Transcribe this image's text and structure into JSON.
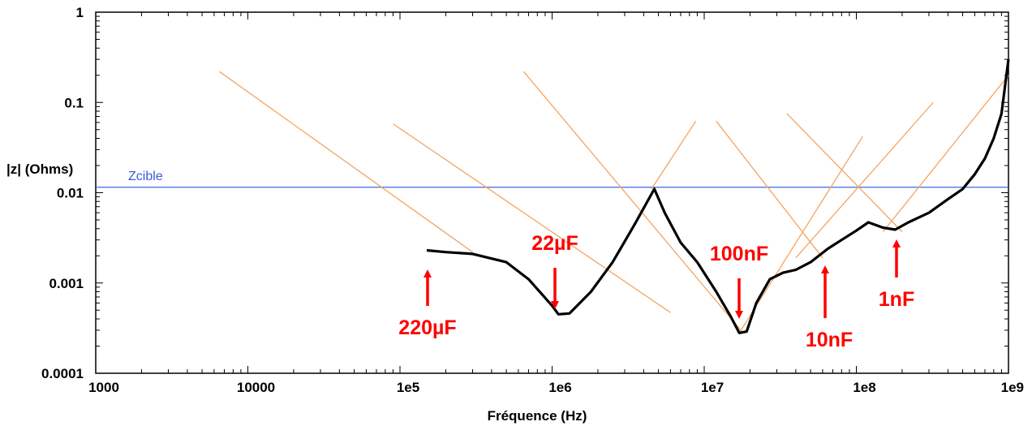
{
  "chart_data": {
    "type": "line",
    "title": "",
    "xlabel": "Fréquence (Hz)",
    "ylabel": "|z| (Ohms)",
    "xscale": "log",
    "yscale": "log",
    "xlim": [
      1000,
      1000000000
    ],
    "ylim": [
      0.0001,
      1
    ],
    "x_ticks": [
      1000,
      10000,
      100000,
      1000000,
      10000000,
      100000000,
      1000000000
    ],
    "x_tick_labels": [
      "1000",
      "10000",
      "1e5",
      "1e6",
      "1e7",
      "1e8",
      "1e9"
    ],
    "y_ticks": [
      1,
      0.1,
      0.01,
      0.001,
      0.0001
    ],
    "y_tick_labels": [
      "1",
      "0.1",
      "0.01",
      "0.001",
      "0.0001"
    ],
    "grid": false,
    "colors": {
      "total": "#000000",
      "capacitor": "#f4a460",
      "target": "#4169e1",
      "annotation": "#ff0000"
    },
    "target_line": {
      "label": "Zcible",
      "value": 0.0115
    },
    "series": [
      {
        "x": [
          150000,
          200000,
          300000,
          500000,
          700000,
          1000000,
          1100000,
          1300000,
          1800000,
          2500000,
          3500000,
          4700000,
          5500000,
          7000000,
          9000000,
          12000000,
          15000000,
          17000000,
          19000000,
          22000000,
          27000000,
          33000000,
          40000000,
          50000000,
          65000000,
          80000000,
          100000000,
          120000000,
          150000000,
          180000000,
          220000000,
          300000000,
          400000000,
          500000000,
          600000000,
          700000000,
          800000000,
          900000000,
          1000000000
        ],
        "y": [
          0.0023,
          0.0022,
          0.0021,
          0.0017,
          0.0011,
          0.00056,
          0.00045,
          0.00046,
          0.0008,
          0.0017,
          0.0045,
          0.011,
          0.006,
          0.0028,
          0.0017,
          0.0008,
          0.00042,
          0.00028,
          0.00029,
          0.0006,
          0.0011,
          0.0013,
          0.0014,
          0.0017,
          0.0024,
          0.003,
          0.0038,
          0.0047,
          0.0041,
          0.0039,
          0.0047,
          0.006,
          0.0085,
          0.011,
          0.016,
          0.024,
          0.04,
          0.075,
          0.3
        ]
      },
      {
        "x": [
          6500,
          300000
        ],
        "y": [
          0.22,
          0.0022
        ]
      },
      {
        "x": [
          90000,
          6000000
        ],
        "y": [
          0.058,
          0.00047
        ]
      },
      {
        "x": [
          4500000,
          8800000
        ],
        "y": [
          0.011,
          0.062
        ]
      },
      {
        "x": [
          650000,
          18000000
        ],
        "y": [
          0.22,
          0.00028
        ]
      },
      {
        "x": [
          17000000,
          110000000
        ],
        "y": [
          0.00028,
          0.042
        ]
      },
      {
        "x": [
          12000000,
          60000000
        ],
        "y": [
          0.062,
          0.0019
        ]
      },
      {
        "x": [
          40000000,
          320000000
        ],
        "y": [
          0.0019,
          0.1
        ]
      },
      {
        "x": [
          35000000,
          200000000
        ],
        "y": [
          0.075,
          0.0037
        ]
      },
      {
        "x": [
          150000000,
          1000000000
        ],
        "y": [
          0.0037,
          0.2
        ]
      }
    ],
    "annotations": [
      {
        "label": "220µF",
        "x": 150000,
        "y": 0.0023
      },
      {
        "label": "22µF",
        "x": 1000000,
        "y": 0.00048
      },
      {
        "label": "100nF",
        "x": 17000000,
        "y": 0.00029
      },
      {
        "label": "10nF",
        "x": 60000000,
        "y": 0.00195
      },
      {
        "label": "1nF",
        "x": 180000000,
        "y": 0.0037
      }
    ]
  }
}
